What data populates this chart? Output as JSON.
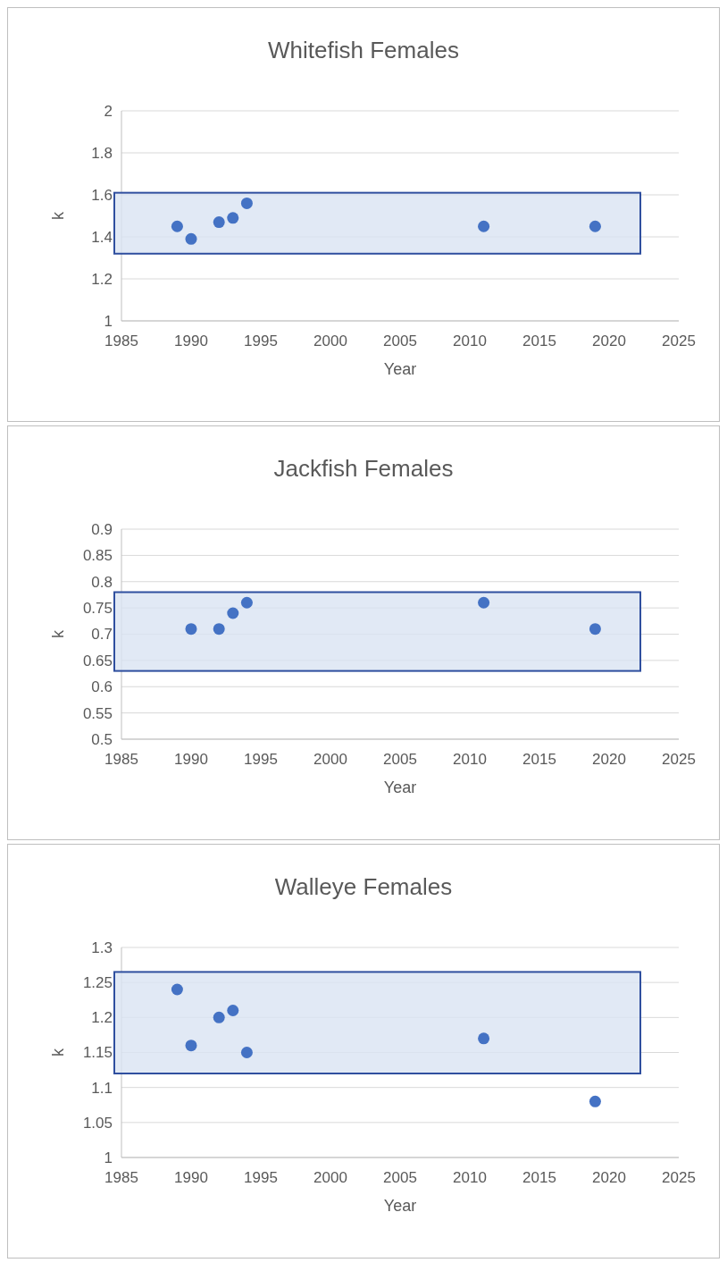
{
  "chart_data": [
    {
      "type": "scatter",
      "title": "Whitefish Females",
      "xlabel": "Year",
      "ylabel": "k",
      "x": [
        1989,
        1990,
        1992,
        1993,
        1994,
        2011,
        2019
      ],
      "values": [
        1.45,
        1.39,
        1.47,
        1.49,
        1.56,
        1.45,
        1.45
      ],
      "color": "#4472c4",
      "marker": "circle",
      "xlim": [
        1985,
        2025
      ],
      "xticks": [
        1985,
        1990,
        1995,
        2000,
        2005,
        2010,
        2015,
        2020,
        2025
      ],
      "ylim": [
        1,
        2
      ],
      "yticks": [
        1,
        1.2,
        1.4,
        1.6,
        1.8,
        2
      ],
      "grid": "y",
      "bands": [
        {
          "axis": "y",
          "from": 1.32,
          "to": 1.61,
          "color": "#dae3f3"
        }
      ]
    },
    {
      "type": "scatter",
      "title": "Jackfish Females",
      "xlabel": "Year",
      "ylabel": "k",
      "x": [
        1990,
        1992,
        1993,
        1994,
        2011,
        2019
      ],
      "values": [
        0.71,
        0.71,
        0.74,
        0.76,
        0.76,
        0.71
      ],
      "color": "#4472c4",
      "marker": "circle",
      "xlim": [
        1985,
        2025
      ],
      "xticks": [
        1985,
        1990,
        1995,
        2000,
        2005,
        2010,
        2015,
        2020,
        2025
      ],
      "ylim": [
        0.5,
        0.9
      ],
      "yticks": [
        {
          "value": 0.5,
          "label": "0.5"
        },
        {
          "value": 0.55,
          "label": "0.55"
        },
        {
          "value": 0.6,
          "label": "0.6"
        },
        {
          "value": 0.65,
          "label": "0.65"
        },
        {
          "value": 0.7,
          "label": "0.7"
        },
        {
          "value": 0.75,
          "label": "0.75"
        },
        {
          "value": 0.8,
          "label": "0.8"
        },
        {
          "value": 0.85,
          "label": "0.85"
        },
        {
          "value": 0.9,
          "label": "0.9"
        }
      ],
      "grid": "y",
      "bands": [
        {
          "axis": "y",
          "from": 0.63,
          "to": 0.78,
          "color": "#dae3f3"
        }
      ]
    },
    {
      "type": "scatter",
      "title": "Walleye Females",
      "xlabel": "Year",
      "ylabel": "k",
      "x": [
        1989,
        1990,
        1992,
        1993,
        1994,
        2011,
        2019
      ],
      "values": [
        1.24,
        1.16,
        1.2,
        1.21,
        1.15,
        1.17,
        1.08
      ],
      "color": "#4472c4",
      "marker": "circle",
      "xlim": [
        1985,
        2025
      ],
      "xticks": [
        1985,
        1990,
        1995,
        2000,
        2005,
        2010,
        2015,
        2020,
        2025
      ],
      "ylim": [
        1,
        1.3
      ],
      "yticks": [
        1,
        1.05,
        1.1,
        1.15,
        1.2,
        1.25,
        1.3
      ],
      "grid": "y",
      "bands": [
        {
          "axis": "y",
          "from": 1.12,
          "to": 1.265,
          "color": "#dae3f3"
        }
      ]
    }
  ]
}
